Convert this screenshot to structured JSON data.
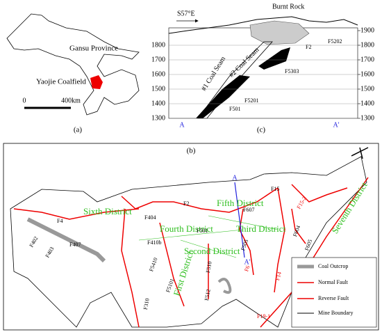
{
  "panel_a": {
    "label": "(a)",
    "province": "Gansu Province",
    "coalfield": "Yaojie Coalfield",
    "scale": [
      "0",
      "400km"
    ]
  },
  "panel_c": {
    "label": "(c)",
    "direction": "S57°E",
    "burnt_rock": "Burnt Rock",
    "left_ticks": [
      1800,
      1700,
      1600,
      1500,
      1400,
      1300
    ],
    "right_ticks": [
      1900,
      1800,
      1700,
      1600,
      1500,
      1400,
      1300
    ],
    "section_ends": [
      "A",
      "A'"
    ],
    "seams": [
      "#1 Coal Seam",
      "#2 Coal Seam"
    ],
    "faults": [
      "F2",
      "F5202",
      "F5303",
      "F5201",
      "F501"
    ]
  },
  "panel_b": {
    "label": "(b)",
    "districts": [
      "Sixth District",
      "Fifth District",
      "Fourth District",
      "Third District",
      "Second District",
      "First District",
      "Seventh District"
    ],
    "faults": [
      "F4",
      "F404",
      "F402",
      "F403",
      "F407",
      "F410b",
      "F5410",
      "F5101",
      "F310",
      "F2",
      "F501",
      "F512",
      "F510",
      "F607",
      "F505",
      "F6",
      "F15",
      "F14",
      "F15-2",
      "F604",
      "F605",
      "F19-1"
    ],
    "section_ends": [
      "A",
      "A'"
    ],
    "legend": [
      "Coal Outcrop",
      "Normal Fault",
      "Reverse Fault",
      "Mine Boundary"
    ]
  }
}
